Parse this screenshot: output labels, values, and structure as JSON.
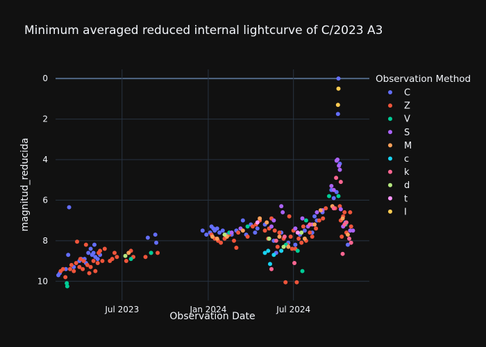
{
  "chart_data": {
    "type": "scatter",
    "title": "Minimum averaged reduced internal lightcurve of C/2023 A3",
    "xlabel": "Observation Date",
    "ylabel": "magnitud_reducida",
    "x_range": [
      "2023-02-09",
      "2024-12-10"
    ],
    "x_ticks": [
      {
        "date": "2023-07-01",
        "label": "Jul 2023"
      },
      {
        "date": "2024-01-01",
        "label": "Jan 2024"
      },
      {
        "date": "2024-07-01",
        "label": "Jul 2024"
      }
    ],
    "y_range": [
      10.95,
      -0.45
    ],
    "y_reversed": true,
    "y_ticks": [
      0,
      2,
      4,
      6,
      8,
      10
    ],
    "legend_title": "Observation Method",
    "series": [
      {
        "name": "C",
        "color": "#636efa",
        "points": [
          [
            "2023-02-15",
            9.7
          ],
          [
            "2023-02-18",
            9.6
          ],
          [
            "2023-03-03",
            9.4
          ],
          [
            "2023-03-10",
            6.35
          ],
          [
            "2023-03-08",
            8.7
          ],
          [
            "2023-03-20",
            9.3
          ],
          [
            "2023-04-01",
            9.0
          ],
          [
            "2023-04-05",
            8.9
          ],
          [
            "2023-04-12",
            8.9
          ],
          [
            "2023-04-15",
            9.1
          ],
          [
            "2023-04-20",
            8.6
          ],
          [
            "2023-04-25",
            8.4
          ],
          [
            "2023-04-28",
            8.7
          ],
          [
            "2023-05-01",
            8.6
          ],
          [
            "2023-05-03",
            8.2
          ],
          [
            "2023-05-05",
            8.8
          ],
          [
            "2023-05-10",
            8.9
          ],
          [
            "2023-05-15",
            8.7
          ],
          [
            "2023-08-25",
            7.85
          ],
          [
            "2023-09-10",
            7.7
          ],
          [
            "2023-09-12",
            8.1
          ],
          [
            "2023-12-20",
            7.5
          ],
          [
            "2023-12-28",
            7.7
          ],
          [
            "2024-01-05",
            7.6
          ],
          [
            "2024-01-08",
            7.3
          ],
          [
            "2024-01-12",
            7.4
          ],
          [
            "2024-01-15",
            7.5
          ],
          [
            "2024-01-20",
            7.4
          ],
          [
            "2024-01-25",
            7.6
          ],
          [
            "2024-02-01",
            7.5
          ],
          [
            "2024-02-08",
            7.7
          ],
          [
            "2024-02-20",
            7.7
          ],
          [
            "2024-03-01",
            7.5
          ],
          [
            "2024-03-15",
            7.0
          ],
          [
            "2024-03-22",
            7.7
          ],
          [
            "2024-04-01",
            7.2
          ],
          [
            "2024-04-10",
            7.6
          ],
          [
            "2024-04-15",
            7.4
          ],
          [
            "2024-05-01",
            7.2
          ],
          [
            "2024-05-20",
            8.0
          ],
          [
            "2024-05-25",
            8.6
          ],
          [
            "2024-06-05",
            7.6
          ],
          [
            "2024-06-20",
            8.1
          ],
          [
            "2024-07-05",
            8.2
          ],
          [
            "2024-07-15",
            7.7
          ],
          [
            "2024-07-25",
            7.5
          ],
          [
            "2024-08-05",
            7.2
          ],
          [
            "2024-08-10",
            7.6
          ],
          [
            "2024-08-15",
            6.8
          ],
          [
            "2024-08-20",
            7.0
          ],
          [
            "2024-09-01",
            6.6
          ],
          [
            "2024-09-20",
            5.5
          ],
          [
            "2024-09-25",
            5.9
          ],
          [
            "2024-10-01",
            5.6
          ],
          [
            "2024-10-04",
            1.75
          ],
          [
            "2024-10-05",
            0.0
          ],
          [
            "2024-10-08",
            4.2
          ],
          [
            "2024-10-20",
            7.1
          ],
          [
            "2024-10-25",
            8.2
          ]
        ]
      },
      {
        "name": "Z",
        "color": "#ef553b",
        "points": [
          [
            "2023-02-20",
            9.5
          ],
          [
            "2023-02-25",
            9.4
          ],
          [
            "2023-03-02",
            9.8
          ],
          [
            "2023-03-12",
            9.4
          ],
          [
            "2023-03-15",
            9.2
          ],
          [
            "2023-03-20",
            9.5
          ],
          [
            "2023-03-25",
            9.1
          ],
          [
            "2023-03-27",
            8.05
          ],
          [
            "2023-04-01",
            9.3
          ],
          [
            "2023-04-03",
            8.9
          ],
          [
            "2023-04-08",
            9.4
          ],
          [
            "2023-04-10",
            9.0
          ],
          [
            "2023-04-15",
            8.2
          ],
          [
            "2023-04-18",
            9.2
          ],
          [
            "2023-04-22",
            9.6
          ],
          [
            "2023-04-25",
            9.3
          ],
          [
            "2023-05-01",
            9.0
          ],
          [
            "2023-05-05",
            9.5
          ],
          [
            "2023-05-10",
            9.1
          ],
          [
            "2023-05-12",
            8.6
          ],
          [
            "2023-05-15",
            8.5
          ],
          [
            "2023-05-20",
            9.0
          ],
          [
            "2023-05-25",
            8.4
          ],
          [
            "2023-06-05",
            9.0
          ],
          [
            "2023-06-10",
            8.9
          ],
          [
            "2023-06-15",
            8.6
          ],
          [
            "2023-06-20",
            8.8
          ],
          [
            "2023-07-10",
            9.0
          ],
          [
            "2023-07-20",
            8.5
          ],
          [
            "2023-07-25",
            8.8
          ],
          [
            "2023-08-20",
            8.8
          ],
          [
            "2023-09-01",
            8.6
          ],
          [
            "2023-09-15",
            8.6
          ],
          [
            "2024-01-08",
            7.7
          ],
          [
            "2024-01-15",
            7.9
          ],
          [
            "2024-01-22",
            8.0
          ],
          [
            "2024-01-28",
            8.1
          ],
          [
            "2024-02-05",
            7.9
          ],
          [
            "2024-02-15",
            7.7
          ],
          [
            "2024-02-25",
            8.0
          ],
          [
            "2024-03-01",
            8.35
          ],
          [
            "2024-03-05",
            7.6
          ],
          [
            "2024-03-25",
            7.8
          ],
          [
            "2024-04-05",
            7.3
          ],
          [
            "2024-04-12",
            7.2
          ],
          [
            "2024-04-20",
            7.0
          ],
          [
            "2024-05-01",
            7.5
          ],
          [
            "2024-05-08",
            7.9
          ],
          [
            "2024-05-10",
            7.4
          ],
          [
            "2024-05-15",
            6.9
          ],
          [
            "2024-05-22",
            7.5
          ],
          [
            "2024-05-28",
            8.3
          ],
          [
            "2024-06-01",
            7.6
          ],
          [
            "2024-06-05",
            8.5
          ],
          [
            "2024-06-10",
            7.9
          ],
          [
            "2024-06-14",
            10.05
          ],
          [
            "2024-06-18",
            8.2
          ],
          [
            "2024-06-22",
            6.8
          ],
          [
            "2024-06-25",
            7.8
          ],
          [
            "2024-06-28",
            8.4
          ],
          [
            "2024-07-01",
            7.5
          ],
          [
            "2024-07-05",
            8.4
          ],
          [
            "2024-07-08",
            10.05
          ],
          [
            "2024-07-12",
            7.9
          ],
          [
            "2024-07-18",
            8.1
          ],
          [
            "2024-07-22",
            7.3
          ],
          [
            "2024-07-28",
            8.0
          ],
          [
            "2024-08-05",
            7.6
          ],
          [
            "2024-08-10",
            7.8
          ],
          [
            "2024-08-18",
            7.4
          ],
          [
            "2024-08-25",
            7.0
          ],
          [
            "2024-09-02",
            6.9
          ],
          [
            "2024-09-08",
            6.4
          ],
          [
            "2024-09-28",
            6.4
          ],
          [
            "2024-10-08",
            6.3
          ],
          [
            "2024-10-10",
            7.0
          ],
          [
            "2024-10-12",
            7.8
          ],
          [
            "2024-10-15",
            6.8
          ],
          [
            "2024-10-18",
            6.6
          ],
          [
            "2024-10-22",
            7.6
          ],
          [
            "2024-10-30",
            6.6
          ],
          [
            "2024-11-01",
            7.3
          ]
        ]
      },
      {
        "name": "V",
        "color": "#00cc96",
        "points": [
          [
            "2023-03-05",
            10.1
          ],
          [
            "2023-03-06",
            10.25
          ],
          [
            "2023-07-20",
            8.9
          ],
          [
            "2023-09-01",
            8.6
          ],
          [
            "2024-02-15",
            7.6
          ],
          [
            "2024-03-25",
            7.3
          ],
          [
            "2024-06-15",
            8.2
          ],
          [
            "2024-07-10",
            8.5
          ],
          [
            "2024-07-20",
            9.5
          ],
          [
            "2024-07-28",
            7.0
          ],
          [
            "2024-09-15",
            5.8
          ],
          [
            "2024-10-05",
            5.8
          ],
          [
            "2024-10-20",
            7.2
          ]
        ]
      },
      {
        "name": "S",
        "color": "#ab63fa",
        "points": [
          [
            "2024-05-15",
            7.3
          ],
          [
            "2024-05-20",
            7.0
          ],
          [
            "2024-06-05",
            6.3
          ],
          [
            "2024-06-08",
            6.6
          ],
          [
            "2024-07-05",
            7.4
          ],
          [
            "2024-07-20",
            6.9
          ],
          [
            "2024-08-01",
            7.3
          ],
          [
            "2024-08-10",
            7.2
          ],
          [
            "2024-08-20",
            6.6
          ],
          [
            "2024-09-01",
            6.5
          ],
          [
            "2024-09-20",
            5.3
          ],
          [
            "2024-09-25",
            5.5
          ],
          [
            "2024-10-01",
            4.05
          ],
          [
            "2024-10-03",
            4.0
          ],
          [
            "2024-10-06",
            4.3
          ],
          [
            "2024-10-08",
            4.5
          ],
          [
            "2024-10-10",
            6.45
          ],
          [
            "2024-10-15",
            7.3
          ],
          [
            "2024-10-30",
            7.5
          ],
          [
            "2024-11-05",
            7.5
          ],
          [
            "2024-02-20",
            7.6
          ],
          [
            "2024-03-10",
            7.4
          ]
        ]
      },
      {
        "name": "M",
        "color": "#ffa15a",
        "points": [
          [
            "2023-07-15",
            8.6
          ],
          [
            "2024-01-10",
            7.8
          ],
          [
            "2024-01-20",
            7.9
          ],
          [
            "2024-02-10",
            7.8
          ],
          [
            "2024-03-15",
            7.5
          ],
          [
            "2024-04-20",
            6.9
          ],
          [
            "2024-05-05",
            7.1
          ],
          [
            "2024-06-01",
            7.8
          ],
          [
            "2024-06-20",
            8.3
          ],
          [
            "2024-07-25",
            7.9
          ],
          [
            "2024-08-15",
            7.2
          ],
          [
            "2024-08-28",
            6.5
          ],
          [
            "2024-09-22",
            6.3
          ],
          [
            "2024-10-14",
            6.9
          ],
          [
            "2024-10-25",
            7.7
          ]
        ]
      },
      {
        "name": "c",
        "color": "#19d3f3",
        "points": [
          [
            "2024-05-01",
            8.6
          ],
          [
            "2024-05-08",
            8.5
          ],
          [
            "2024-05-12",
            9.15
          ],
          [
            "2024-05-20",
            8.7
          ],
          [
            "2024-06-05",
            8.5
          ]
        ]
      },
      {
        "name": "k",
        "color": "#ff6692",
        "points": [
          [
            "2024-05-15",
            9.4
          ],
          [
            "2024-05-25",
            8.0
          ],
          [
            "2024-06-12",
            7.8
          ],
          [
            "2024-07-03",
            9.1
          ],
          [
            "2024-08-05",
            7.2
          ],
          [
            "2024-09-25",
            6.4
          ],
          [
            "2024-10-10",
            5.1
          ],
          [
            "2024-10-14",
            8.65
          ],
          [
            "2024-10-18",
            7.2
          ],
          [
            "2024-10-22",
            7.1
          ],
          [
            "2024-10-28",
            7.9
          ],
          [
            "2024-11-01",
            8.1
          ],
          [
            "2024-09-30",
            4.9
          ]
        ]
      },
      {
        "name": "d",
        "color": "#b6e880",
        "points": [
          [
            "2023-07-08",
            8.75
          ],
          [
            "2024-02-05",
            7.7
          ],
          [
            "2024-05-10",
            7.9
          ],
          [
            "2024-06-10",
            8.3
          ],
          [
            "2024-07-18",
            7.6
          ]
        ]
      },
      {
        "name": "t",
        "color": "#ff97ff",
        "points": [
          [
            "2024-04-15",
            7.1
          ],
          [
            "2024-07-10",
            7.6
          ]
        ]
      },
      {
        "name": "I",
        "color": "#fecb52",
        "points": [
          [
            "2024-10-05",
            0.5
          ],
          [
            "2024-10-04",
            1.3
          ]
        ]
      }
    ]
  }
}
